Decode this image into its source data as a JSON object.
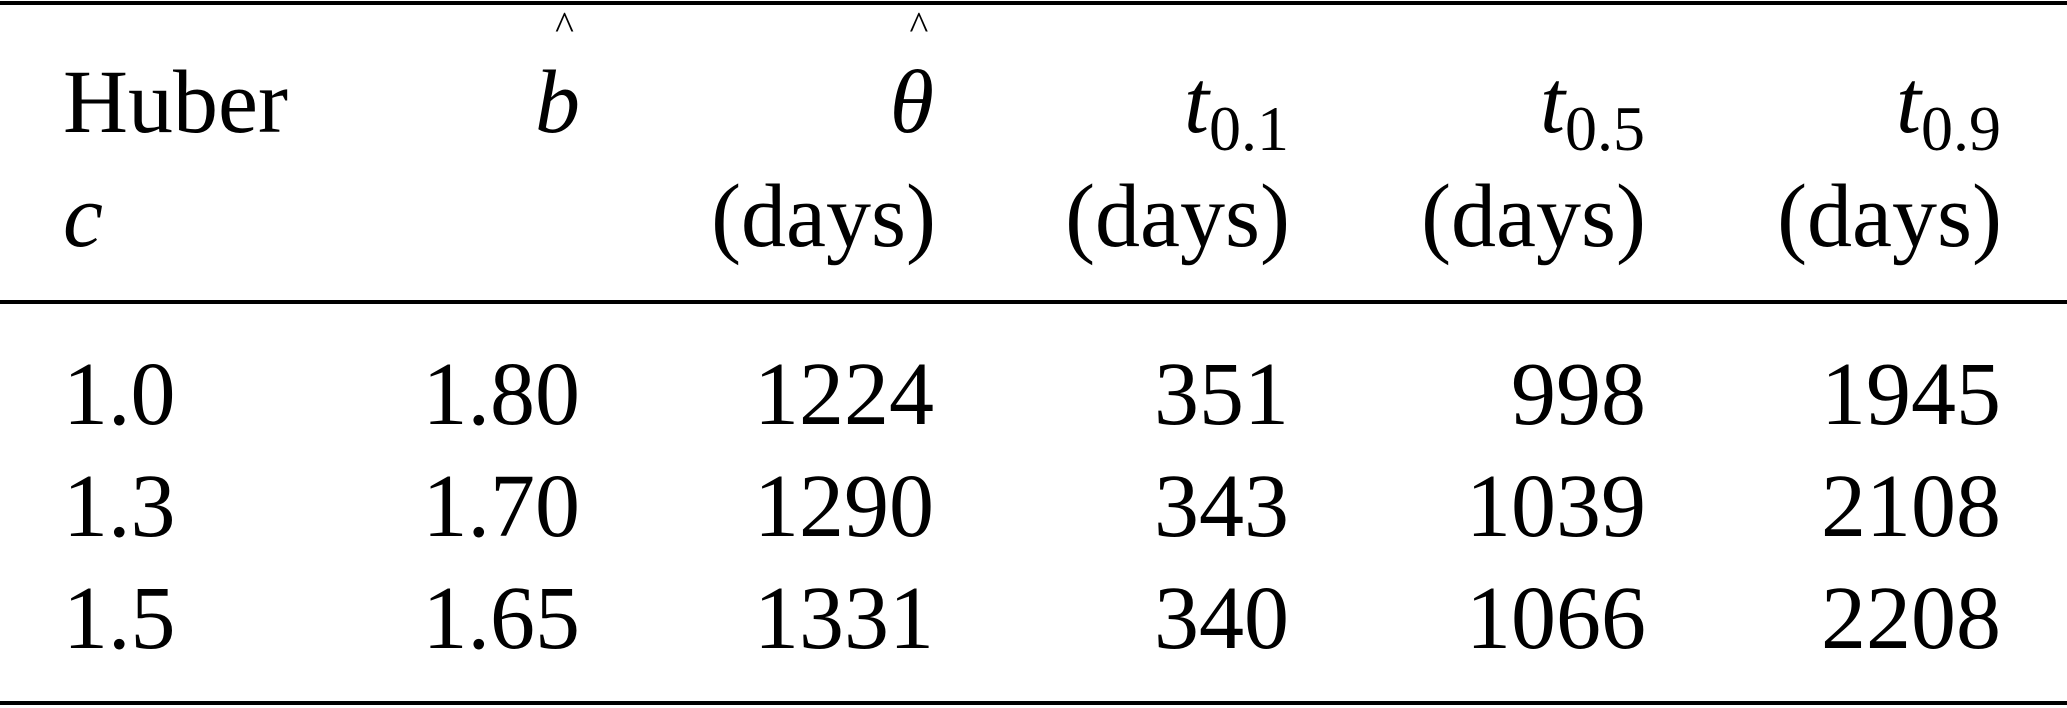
{
  "table": {
    "header": {
      "col0": {
        "line1": "Huber",
        "line2": "c"
      },
      "col1": {
        "symbol": "b",
        "accent": "^"
      },
      "col2": {
        "symbol": "θ",
        "accent": "^",
        "unit": "(days)"
      },
      "col3": {
        "symbol": "t",
        "sub": "0.1",
        "unit": "(days)"
      },
      "col4": {
        "symbol": "t",
        "sub": "0.5",
        "unit": "(days)"
      },
      "col5": {
        "symbol": "t",
        "sub": "0.9",
        "unit": "(days)"
      }
    },
    "rows": [
      [
        "1.0",
        "1.80",
        "1224",
        "351",
        "998",
        "1945"
      ],
      [
        "1.3",
        "1.70",
        "1290",
        "343",
        "1039",
        "2108"
      ],
      [
        "1.5",
        "1.65",
        "1331",
        "340",
        "1066",
        "2208"
      ]
    ]
  }
}
